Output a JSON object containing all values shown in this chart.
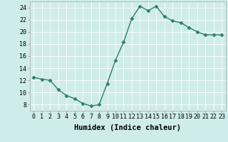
{
  "x": [
    0,
    1,
    2,
    3,
    4,
    5,
    6,
    7,
    8,
    9,
    10,
    11,
    12,
    13,
    14,
    15,
    16,
    17,
    18,
    19,
    20,
    21,
    22,
    23
  ],
  "y": [
    12.5,
    12.2,
    12.0,
    10.5,
    9.5,
    9.0,
    8.2,
    7.8,
    8.0,
    11.5,
    15.3,
    18.3,
    22.2,
    24.2,
    23.5,
    24.2,
    22.5,
    21.8,
    21.5,
    20.7,
    20.0,
    19.5,
    19.5,
    19.5
  ],
  "line_color": "#2e7d6e",
  "marker": "D",
  "markersize": 2.5,
  "bg_color": "#ceecea",
  "grid_color": "#ffffff",
  "xlabel": "Humidex (Indice chaleur)",
  "ylim": [
    7,
    25
  ],
  "xlim": [
    -0.5,
    23.5
  ],
  "yticks": [
    8,
    10,
    12,
    14,
    16,
    18,
    20,
    22,
    24
  ],
  "xticks": [
    0,
    1,
    2,
    3,
    4,
    5,
    6,
    7,
    8,
    9,
    10,
    11,
    12,
    13,
    14,
    15,
    16,
    17,
    18,
    19,
    20,
    21,
    22,
    23
  ],
  "xtick_labels": [
    "0",
    "1",
    "2",
    "3",
    "4",
    "5",
    "6",
    "7",
    "8",
    "9",
    "10",
    "11",
    "12",
    "13",
    "14",
    "15",
    "16",
    "17",
    "18",
    "19",
    "20",
    "21",
    "22",
    "23"
  ],
  "linewidth": 1.0,
  "xlabel_fontsize": 7.5,
  "tick_fontsize": 6.0,
  "grid_linewidth": 0.6
}
